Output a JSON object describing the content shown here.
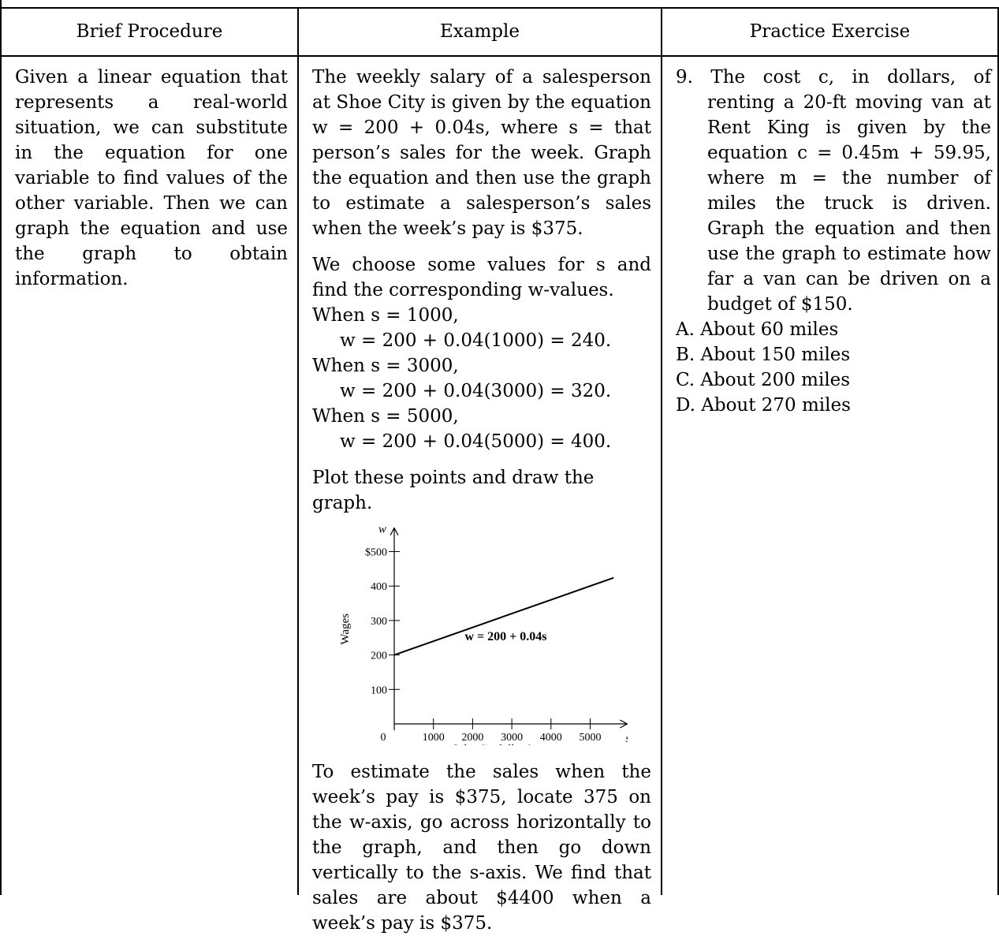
{
  "headers": {
    "procedure": "Brief Procedure",
    "example": "Example",
    "practice": "Practice Exercise"
  },
  "procedure": {
    "text": "Given a linear equation that represents a real-world situation, we can substitute in the equation for one variable to find values of the other variable. Then we can graph the equation and use the graph to obtain information."
  },
  "example": {
    "intro": "The weekly salary of a salesperson at Shoe City is given by the equation w = 200 + 0.04s, where s = that person’s sales for the week. Graph the equation and then use the graph to estimate a salesperson’s sales when the week’s pay is $375.",
    "choose": "We choose some values for s and find the corresponding w-values.",
    "when1": "When s = 1000,",
    "calc1": "w = 200 + 0.04(1000) = 240.",
    "when2": "When s = 3000,",
    "calc2": "w = 200 + 0.04(3000) = 320.",
    "when3": "When s = 5000,",
    "calc3": "w = 200 + 0.04(5000) = 400.",
    "plot": "Plot these points and draw the graph.",
    "estimate": "To estimate the sales when the week’s pay is $375, locate 375 on the w-axis, go across horizontally to the graph, and then go down vertically to the s-axis. We find that sales are about $4400 when a week’s pay is $375."
  },
  "practice": {
    "exercise": "9. The cost c, in dollars, of renting a 20-ft moving van at Rent King is given by the equation c = 0.45m + 59.95, where m = the number of miles the truck is driven. Graph the equation and then use the graph to estimate how far a van can be driven on a budget of $150.",
    "choices": [
      "A. About 60 miles",
      "B. About 150 miles",
      "C. About 200 miles",
      "D. About 270 miles"
    ]
  },
  "chart_data": {
    "type": "line",
    "xlabel": "Sales (in dollars)",
    "ylabel": "Wages",
    "x_var": "s",
    "y_var": "w",
    "xlim": [
      0,
      5500
    ],
    "ylim": [
      0,
      550
    ],
    "x_ticks": [
      1000,
      2000,
      3000,
      4000,
      5000
    ],
    "x_tick_labels": [
      "1000",
      "2000",
      "3000",
      "4000",
      "5000"
    ],
    "y_ticks": [
      100,
      200,
      300,
      400,
      500
    ],
    "y_tick_labels": [
      "100",
      "200",
      "300",
      "400",
      "$500"
    ],
    "origin_label": "0",
    "series": [
      {
        "label": "w = 200 + 0.04s",
        "x": [
          0,
          5600
        ],
        "y": [
          200,
          424
        ]
      }
    ]
  }
}
